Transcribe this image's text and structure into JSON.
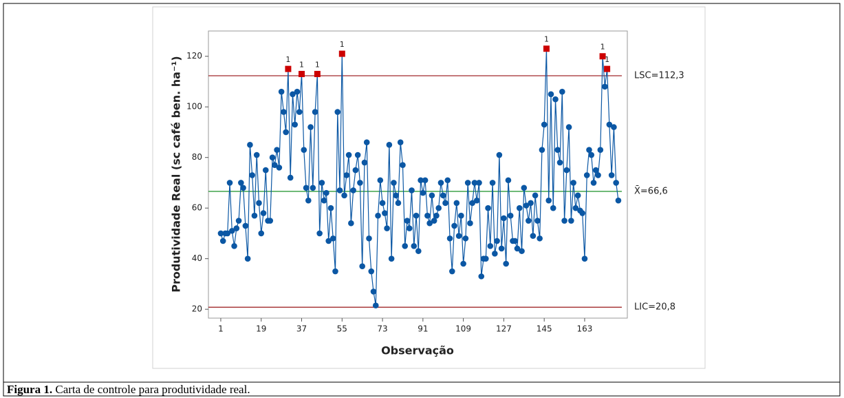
{
  "chart_data": {
    "type": "line",
    "xlabel": "Observação",
    "ylabel": "Produtividade Real (sc café ben. ha⁻¹)",
    "x": [
      1,
      2,
      3,
      4,
      5,
      6,
      7,
      8,
      9,
      10,
      11,
      12,
      13,
      14,
      15,
      16,
      17,
      18,
      19,
      20,
      21,
      22,
      23,
      24,
      25,
      26,
      27,
      28,
      29,
      30,
      31,
      32,
      33,
      34,
      35,
      36,
      37,
      38,
      39,
      40,
      41,
      42,
      43,
      44,
      45,
      46,
      47,
      48,
      49,
      50,
      51,
      52,
      53,
      54,
      55,
      56,
      57,
      58,
      59,
      60,
      61,
      62,
      63,
      64,
      65,
      66,
      67,
      68,
      69,
      70,
      71,
      72,
      73,
      74,
      75,
      76,
      77,
      78,
      79,
      80,
      81,
      82,
      83,
      84,
      85,
      86,
      87,
      88,
      89,
      90,
      91,
      92,
      93,
      94,
      95,
      96,
      97,
      98,
      99,
      100,
      101,
      102,
      103,
      104,
      105,
      106,
      107,
      108,
      109,
      110,
      111,
      112,
      113,
      114,
      115,
      116,
      117,
      118,
      119,
      120,
      121,
      122,
      123,
      124,
      125,
      126,
      127,
      128,
      129,
      130,
      131,
      132,
      133,
      134,
      135,
      136,
      137,
      138,
      139,
      140,
      141,
      142,
      143,
      144,
      145,
      146,
      147,
      148,
      149,
      150,
      151,
      152,
      153,
      154,
      155,
      156,
      157,
      158,
      159,
      160,
      161,
      162,
      163,
      164,
      165,
      166,
      167,
      168,
      169,
      170,
      171,
      172,
      173,
      174,
      175,
      176,
      177,
      178
    ],
    "series": [
      {
        "color": "#0b57a4",
        "values": [
          50,
          47,
          50,
          50,
          70,
          51,
          45,
          52,
          55,
          70,
          68,
          53,
          40,
          85,
          73,
          57,
          81,
          62,
          50,
          58,
          75,
          55,
          55,
          80,
          77,
          83,
          76,
          106,
          98,
          90,
          115,
          72,
          105,
          93,
          106,
          98,
          113,
          83,
          68,
          63,
          92,
          68,
          98,
          113,
          50,
          70,
          63,
          66,
          47,
          60,
          48,
          35,
          98,
          67,
          121,
          65,
          73,
          81,
          54,
          67,
          75,
          81,
          70,
          37,
          78,
          86,
          48,
          35,
          27,
          21.5,
          57,
          71,
          62,
          58,
          52,
          85,
          40,
          70,
          65,
          62,
          86,
          77,
          45,
          55,
          52,
          67,
          45,
          57,
          43,
          71,
          66,
          71,
          57,
          54,
          65,
          55,
          57,
          60,
          70,
          65,
          62,
          71,
          48,
          35,
          53,
          62,
          49,
          57,
          38,
          48,
          70,
          54,
          62,
          70,
          63,
          70,
          33,
          40,
          40,
          60,
          45,
          70,
          42,
          47,
          81,
          44,
          56,
          38,
          71,
          57,
          47,
          47,
          44,
          60,
          43,
          68,
          61,
          55,
          62,
          49,
          65,
          55,
          48,
          83,
          93,
          123,
          63,
          105,
          60,
          103,
          83,
          78,
          106,
          55,
          75,
          92,
          55,
          70,
          60,
          65,
          59,
          58,
          40,
          73,
          83,
          81,
          70,
          75,
          73,
          83,
          120,
          108,
          115,
          93,
          73,
          92,
          70,
          63
        ],
        "flags": [
          null,
          null,
          null,
          null,
          null,
          null,
          null,
          null,
          null,
          null,
          null,
          null,
          null,
          null,
          null,
          null,
          null,
          null,
          null,
          null,
          null,
          null,
          null,
          null,
          null,
          null,
          null,
          null,
          null,
          null,
          1,
          null,
          null,
          null,
          null,
          null,
          1,
          null,
          null,
          null,
          null,
          null,
          null,
          1,
          null,
          null,
          null,
          null,
          null,
          null,
          null,
          null,
          null,
          null,
          1,
          null,
          null,
          null,
          null,
          null,
          null,
          null,
          null,
          null,
          null,
          null,
          null,
          null,
          null,
          null,
          null,
          null,
          null,
          null,
          null,
          null,
          null,
          null,
          null,
          null,
          null,
          null,
          null,
          null,
          null,
          null,
          null,
          null,
          null,
          null,
          null,
          null,
          null,
          null,
          null,
          null,
          null,
          null,
          null,
          null,
          null,
          null,
          null,
          null,
          null,
          null,
          null,
          null,
          null,
          null,
          null,
          null,
          null,
          null,
          null,
          null,
          null,
          null,
          null,
          null,
          null,
          null,
          null,
          null,
          null,
          null,
          null,
          null,
          null,
          null,
          null,
          null,
          null,
          null,
          null,
          null,
          null,
          null,
          null,
          null,
          null,
          null,
          null,
          null,
          null,
          1,
          null,
          null,
          null,
          null,
          null,
          null,
          null,
          null,
          null,
          null,
          null,
          null,
          null,
          null,
          null,
          null,
          null,
          null,
          null,
          null,
          null,
          null,
          null,
          null,
          1,
          null,
          1,
          null,
          null,
          null,
          null,
          null
        ],
        "flag_color": "#cc0000"
      }
    ],
    "limits": [
      {
        "label": "LSC=112,3",
        "value": 112.3,
        "color": "#a0282a"
      },
      {
        "label": "X̄=66,6",
        "value": 66.6,
        "color": "#2e9a3a"
      },
      {
        "label": "LIC=20,8",
        "value": 20.8,
        "color": "#a0282a"
      }
    ],
    "xlim": [
      -4.5,
      182
    ],
    "ylim": [
      16.5,
      130
    ],
    "xticks": [
      1,
      19,
      37,
      55,
      73,
      91,
      109,
      127,
      145,
      163
    ],
    "yticks": [
      20,
      40,
      60,
      80,
      100,
      120
    ]
  },
  "caption": {
    "label": "Figura 1.",
    "text": "Carta de controle para produtividade real."
  }
}
